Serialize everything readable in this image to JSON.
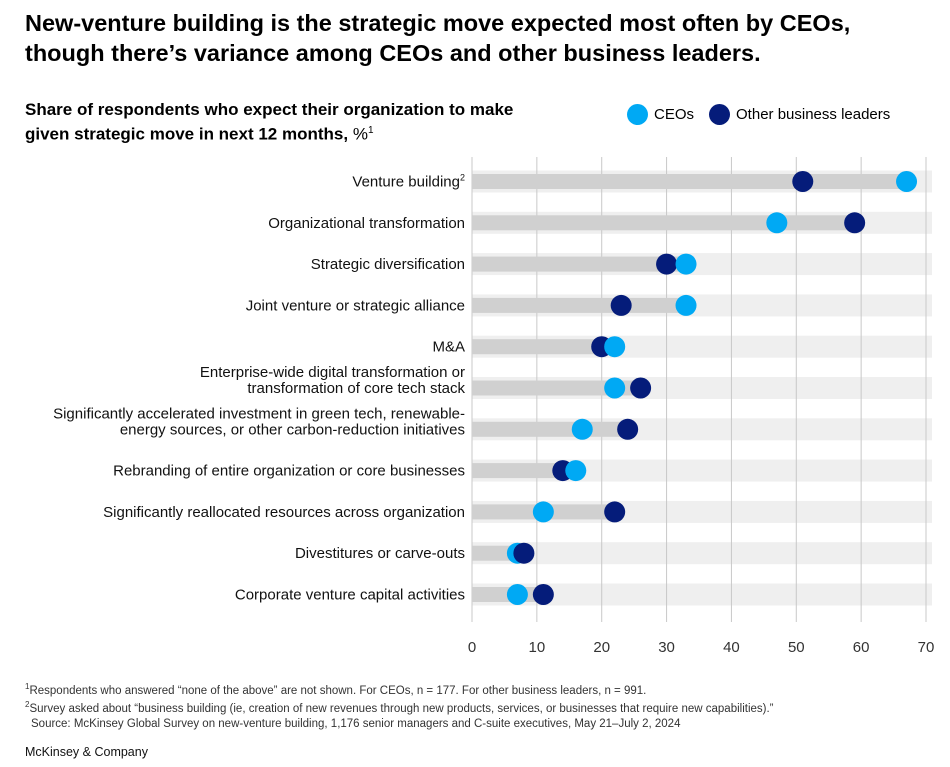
{
  "headline": "New-venture building is the strategic move expected most often by CEOs, though there’s variance among CEOs and other business leaders.",
  "subtitle": "Share of respondents who expect their organization to make given strategic move in next 12 months,",
  "subtitle_unit": "%",
  "subtitle_note": "1",
  "legend": {
    "ceo_label": "CEOs",
    "other_label": "Other business leaders"
  },
  "colors": {
    "ceo": "#00a9f4",
    "other": "#051c7a",
    "band": "#efefef",
    "bar": "#d0d0d0",
    "grid": "#c8c8c8"
  },
  "chart_data": {
    "type": "dot",
    "title": "Share of respondents who expect their organization to make given strategic move in next 12 months, %",
    "xlabel": "",
    "ylabel": "",
    "xlim": [
      0,
      70
    ],
    "xticks": [
      0,
      10,
      20,
      30,
      40,
      50,
      60,
      70
    ],
    "series": [
      {
        "name": "CEOs",
        "color": "#00a9f4"
      },
      {
        "name": "Other business leaders",
        "color": "#051c7a"
      }
    ],
    "categories": [
      {
        "lines": [
          "Venture building"
        ],
        "sup": "2",
        "ceo": 67,
        "other": 51
      },
      {
        "lines": [
          "Organizational transformation"
        ],
        "ceo": 47,
        "other": 59
      },
      {
        "lines": [
          "Strategic diversification"
        ],
        "ceo": 33,
        "other": 30
      },
      {
        "lines": [
          "Joint venture or strategic alliance"
        ],
        "ceo": 33,
        "other": 23
      },
      {
        "lines": [
          "M&A"
        ],
        "ceo": 22,
        "other": 20
      },
      {
        "lines": [
          "Enterprise-wide digital transformation or",
          "transformation of core tech stack"
        ],
        "ceo": 22,
        "other": 26
      },
      {
        "lines": [
          "Significantly accelerated investment in green tech, renewable-",
          "energy sources, or other carbon-reduction initiatives"
        ],
        "ceo": 17,
        "other": 24
      },
      {
        "lines": [
          "Rebranding of entire organization or core businesses"
        ],
        "ceo": 16,
        "other": 14
      },
      {
        "lines": [
          "Significantly reallocated resources across organization"
        ],
        "ceo": 11,
        "other": 22
      },
      {
        "lines": [
          "Divestitures or carve-outs"
        ],
        "ceo": 7,
        "other": 8
      },
      {
        "lines": [
          "Corporate venture capital activities"
        ],
        "ceo": 7,
        "other": 11
      }
    ]
  },
  "footnotes": {
    "note1_mark": "1",
    "note1": "Respondents who answered “none of the above” are not shown. For CEOs, n = 177. For other business leaders, n = 991.",
    "note2_mark": "2",
    "note2": "Survey asked about “business building (ie, creation of new revenues through new products, services, or businesses that require new capabilities).”",
    "source": "Source: McKinsey Global Survey on new-venture building, 1,176 senior managers and C-suite executives, May 21–July 2, 2024"
  },
  "brand": "McKinsey & Company"
}
